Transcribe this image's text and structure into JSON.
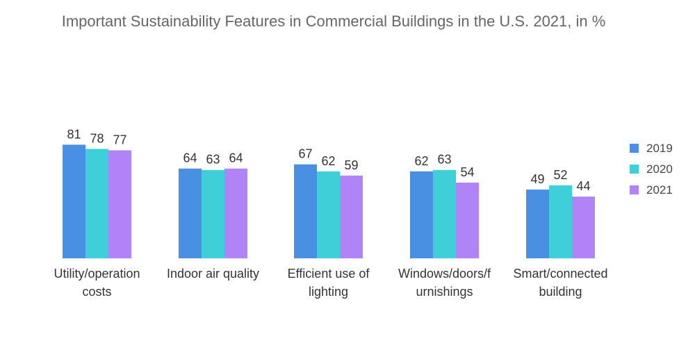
{
  "chart_data": {
    "type": "bar",
    "title": "Important Sustainability Features in Commercial Buildings in the U.S. 2021, in %",
    "categories": [
      [
        "Utility/operation",
        "costs"
      ],
      [
        "Indoor air quality"
      ],
      [
        "Efficient use of",
        "lighting"
      ],
      [
        "Windows/doors/f",
        "urnishings"
      ],
      [
        "Smart/connected",
        "building"
      ]
    ],
    "series": [
      {
        "name": "2019",
        "color": "#4a90e2",
        "values": [
          81,
          64,
          67,
          62,
          49
        ]
      },
      {
        "name": "2020",
        "color": "#3ecfd8",
        "values": [
          78,
          63,
          62,
          63,
          52
        ]
      },
      {
        "name": "2021",
        "color": "#b084f7",
        "values": [
          77,
          64,
          59,
          54,
          44
        ]
      }
    ],
    "ylim": [
      0,
      100
    ],
    "legend_position": "right",
    "grid": false
  }
}
